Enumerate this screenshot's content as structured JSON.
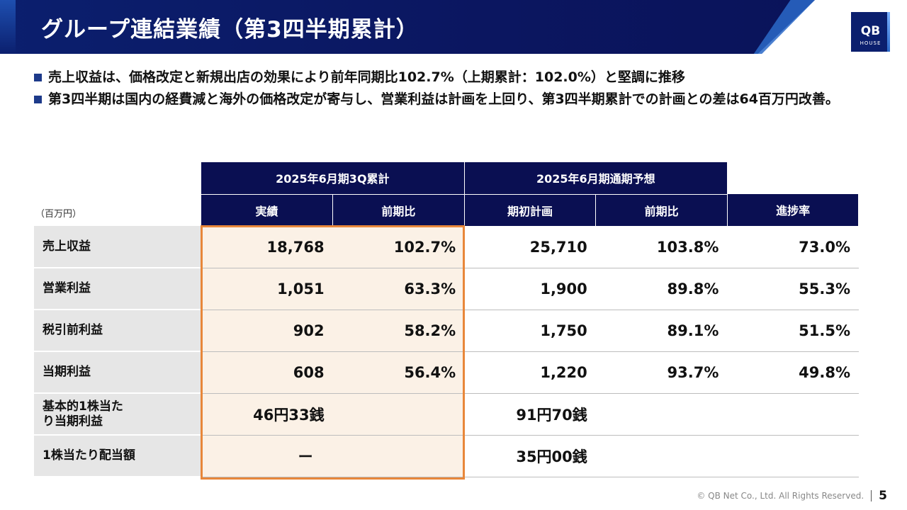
{
  "header": {
    "title": "グループ連結業績（第3四半期累計）",
    "logo_main": "QB",
    "logo_sub": "HOUSE"
  },
  "bullets": [
    "売上収益は、価格改定と新規出店の効果により前年同期比102.7%（上期累計：102.0%）と堅調に推移",
    "第3四半期は国内の経費減と海外の価格改定が寄与し、営業利益は計画を上回り、第3四半期累計での計画との差は64百万円改善。"
  ],
  "table": {
    "unit": "（百万円）",
    "group_headers": [
      "2025年6月期3Q累計",
      "2025年6月期通期予想"
    ],
    "sub_headers": [
      "実績",
      "前期比",
      "期初計画",
      "前期比",
      "進捗率"
    ],
    "rows": [
      {
        "label": "売上収益",
        "values": [
          "18,768",
          "102.7%",
          "25,710",
          "103.8%",
          "73.0%"
        ]
      },
      {
        "label": "営業利益",
        "values": [
          "1,051",
          "63.3%",
          "1,900",
          "89.8%",
          "55.3%"
        ]
      },
      {
        "label": "税引前利益",
        "values": [
          "902",
          "58.2%",
          "1,750",
          "89.1%",
          "51.5%"
        ]
      },
      {
        "label": "当期利益",
        "values": [
          "608",
          "56.4%",
          "1,220",
          "93.7%",
          "49.8%"
        ]
      },
      {
        "label": "基本的1株当たり当期利益",
        "values": [
          "46円33銭",
          "",
          "91円70銭",
          "",
          ""
        ]
      },
      {
        "label": "1株当たり配当額",
        "values": [
          "ー",
          "",
          "35円00銭",
          "",
          ""
        ]
      }
    ]
  },
  "footer": {
    "copyright": "© QB Net Co., Ltd. All Rights Reserved.",
    "page_number": "5"
  },
  "colors": {
    "header_navy": "#0b1f6e",
    "table_header": "#0a0f52",
    "highlight_border": "#e8873a",
    "highlight_fill": "#fbf1e6"
  }
}
